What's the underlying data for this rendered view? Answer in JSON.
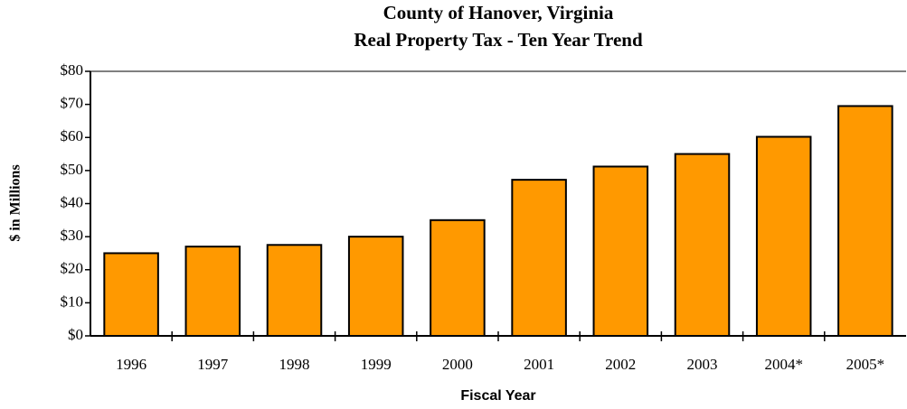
{
  "chart_data": {
    "type": "bar",
    "title": "County of Hanover, Virginia",
    "subtitle": "Real Property Tax - Ten Year Trend",
    "x_label": "Fiscal Year",
    "y_label": "$ in Millions",
    "categories": [
      "1996",
      "1997",
      "1998",
      "1999",
      "2000",
      "2001",
      "2002",
      "2003",
      "2004*",
      "2005*"
    ],
    "values": [
      25,
      27,
      27.5,
      30,
      35,
      47.2,
      51.2,
      55,
      60.2,
      69.5
    ],
    "color": "#ff9900",
    "ylim": [
      0,
      80
    ],
    "yticks": [
      {
        "value": 0,
        "label": "$0"
      },
      {
        "value": 10,
        "label": "$10"
      },
      {
        "value": 20,
        "label": "$20"
      },
      {
        "value": 30,
        "label": "$30"
      },
      {
        "value": 40,
        "label": "$40"
      },
      {
        "value": 50,
        "label": "$50"
      },
      {
        "value": 60,
        "label": "$60"
      },
      {
        "value": 70,
        "label": "$70"
      },
      {
        "value": 80,
        "label": "$80"
      }
    ],
    "grid": false
  }
}
